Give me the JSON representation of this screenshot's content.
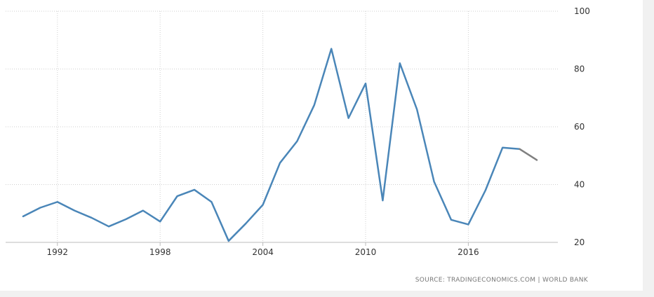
{
  "chart_data": {
    "type": "line",
    "title": "",
    "xlabel": "",
    "ylabel": "",
    "x": [
      1990,
      1991,
      1992,
      1993,
      1994,
      1995,
      1996,
      1997,
      1998,
      1999,
      2000,
      2001,
      2002,
      2003,
      2004,
      2005,
      2006,
      2007,
      2008,
      2009,
      2010,
      2011,
      2012,
      2013,
      2014,
      2015,
      2016,
      2017,
      2018,
      2019,
      2020
    ],
    "series": [
      {
        "values": [
          29,
          32,
          34,
          31,
          28.5,
          25.5,
          28,
          31,
          27.2,
          36,
          38.2,
          34,
          20.5,
          26.5,
          33,
          47.5,
          55,
          67.5,
          87,
          63,
          75,
          34.5,
          82,
          66,
          41,
          27.8,
          26.2,
          38,
          52.8,
          52.3,
          48.5
        ],
        "color": "#4a86b8"
      }
    ],
    "projection_start_year": 2019,
    "projection_color": "#808080",
    "xlim": [
      1990,
      2020
    ],
    "ylim": [
      20,
      100
    ],
    "x_ticks": [
      "1992",
      "1998",
      "2004",
      "2010",
      "2016"
    ],
    "x_tick_values": [
      1992,
      1998,
      2004,
      2010,
      2016
    ],
    "y_ticks": [
      "20",
      "40",
      "60",
      "80",
      "100"
    ],
    "y_tick_values": [
      20,
      40,
      60,
      80,
      100
    ],
    "y_axis_side": "right",
    "grid": true
  },
  "footer": {
    "source": "SOURCE: TRADINGECONOMICS.COM  |  WORLD BANK"
  }
}
